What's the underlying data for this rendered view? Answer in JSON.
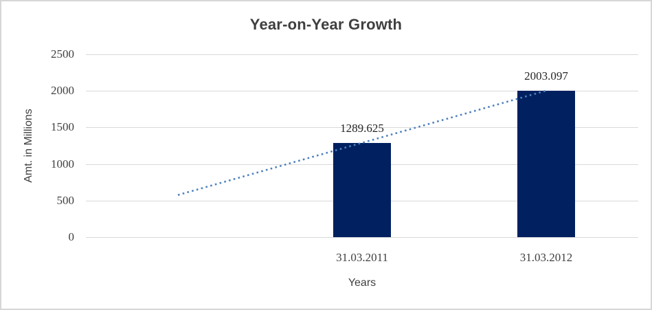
{
  "chart_data": {
    "type": "bar",
    "title": "Year-on-Year Growth",
    "xlabel": "Years",
    "ylabel": "Amt. in Millions",
    "categories": [
      "31.03.2011",
      "31.03.2012"
    ],
    "values": [
      1289.625,
      2003.097
    ],
    "data_labels": [
      "1289.625",
      "2003.097"
    ],
    "yticks": [
      0,
      500,
      1000,
      1500,
      2000,
      2500
    ],
    "ylim": [
      0,
      2500
    ],
    "grid": true,
    "legend": "none",
    "trendline": {
      "type": "linear",
      "style": "dotted",
      "start_value": 576.2,
      "end_value": 2003.1
    },
    "colors": {
      "bar": "#002060",
      "trendline": "#4e81bd",
      "gridline": "#d9d9d9",
      "text": "#3f3f3f",
      "border": "#d6d6d6"
    }
  }
}
